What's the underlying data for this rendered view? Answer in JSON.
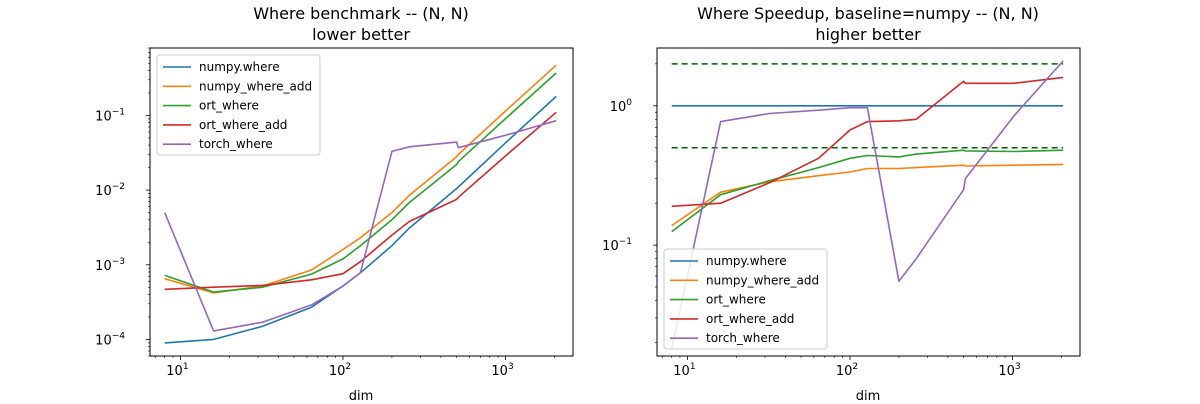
{
  "figure": {
    "background": "#ffffff"
  },
  "series_colors": {
    "numpy.where": "#1f77b4",
    "numpy_where_add": "#ff7f0e",
    "ort_where": "#2ca02c",
    "ort_where_add": "#d62728",
    "torch_where": "#9467bd",
    "reference": "#006400"
  },
  "chart_data": [
    {
      "type": "line",
      "title": "Where benchmark -- (N, N)",
      "subtitle": "lower better",
      "xlabel": "dim",
      "ylabel": "",
      "xscale": "log",
      "yscale": "log",
      "xlim": [
        6.5,
        2600
      ],
      "ylim": [
        6e-05,
        0.8
      ],
      "xticks": [
        {
          "value": 10,
          "base": "10",
          "exp": "1"
        },
        {
          "value": 100,
          "base": "10",
          "exp": "2"
        },
        {
          "value": 1000,
          "base": "10",
          "exp": "3"
        }
      ],
      "yticks": [
        {
          "value": 0.0001,
          "base": "10",
          "exp": "−4"
        },
        {
          "value": 0.001,
          "base": "10",
          "exp": "−3"
        },
        {
          "value": 0.01,
          "base": "10",
          "exp": "−2"
        },
        {
          "value": 0.1,
          "base": "10",
          "exp": "−1"
        }
      ],
      "legend_position": "upper-left",
      "grid": false,
      "series": [
        {
          "name": "numpy.where",
          "x": [
            8,
            16,
            32,
            64,
            100,
            128,
            200,
            256,
            500,
            512,
            1024,
            2048
          ],
          "y": [
            9e-05,
            0.0001,
            0.00015,
            0.00027,
            0.00052,
            0.00078,
            0.0018,
            0.0031,
            0.0105,
            0.011,
            0.045,
            0.18
          ]
        },
        {
          "name": "numpy_where_add",
          "x": [
            8,
            16,
            32,
            64,
            100,
            128,
            200,
            256,
            500,
            512,
            1024,
            2048
          ],
          "y": [
            0.00065,
            0.00042,
            0.00052,
            0.00085,
            0.0016,
            0.0023,
            0.005,
            0.0085,
            0.028,
            0.03,
            0.12,
            0.47
          ]
        },
        {
          "name": "ort_where",
          "x": [
            8,
            16,
            32,
            64,
            100,
            128,
            200,
            256,
            500,
            512,
            1024,
            2048
          ],
          "y": [
            0.00072,
            0.00043,
            0.0005,
            0.00075,
            0.0012,
            0.0018,
            0.004,
            0.0068,
            0.022,
            0.024,
            0.095,
            0.37
          ]
        },
        {
          "name": "ort_where_add",
          "x": [
            8,
            16,
            32,
            64,
            100,
            128,
            200,
            256,
            500,
            512,
            1024,
            2048
          ],
          "y": [
            0.00047,
            0.0005,
            0.00053,
            0.00063,
            0.00076,
            0.0011,
            0.0025,
            0.0038,
            0.0075,
            0.008,
            0.03,
            0.11
          ]
        },
        {
          "name": "torch_where",
          "x": [
            8,
            16,
            32,
            64,
            100,
            128,
            200,
            256,
            500,
            512,
            1024,
            2048
          ],
          "y": [
            0.005,
            0.00013,
            0.00017,
            0.00029,
            0.00052,
            0.00078,
            0.033,
            0.038,
            0.044,
            0.037,
            0.055,
            0.085
          ]
        }
      ]
    },
    {
      "type": "line",
      "title": "Where Speedup, baseline=numpy -- (N, N)",
      "subtitle": "higher better",
      "xlabel": "dim",
      "ylabel": "",
      "xscale": "log",
      "yscale": "log",
      "xlim": [
        6.5,
        2600
      ],
      "ylim": [
        0.016,
        2.6
      ],
      "xticks": [
        {
          "value": 10,
          "base": "10",
          "exp": "1"
        },
        {
          "value": 100,
          "base": "10",
          "exp": "2"
        },
        {
          "value": 1000,
          "base": "10",
          "exp": "3"
        }
      ],
      "yticks": [
        {
          "value": 0.1,
          "base": "10",
          "exp": "−1"
        },
        {
          "value": 1,
          "base": "10",
          "exp": "0"
        }
      ],
      "legend_position": "lower-left",
      "grid": false,
      "reference_lines": [
        {
          "y": 2.0,
          "x": [
            8,
            2048
          ]
        },
        {
          "y": 0.5,
          "x": [
            8,
            2048
          ]
        }
      ],
      "series": [
        {
          "name": "numpy.where",
          "x": [
            8,
            16,
            32,
            64,
            100,
            128,
            200,
            256,
            500,
            512,
            1024,
            2048
          ],
          "y": [
            1,
            1,
            1,
            1,
            1,
            1,
            1,
            1,
            1,
            1,
            1,
            1
          ]
        },
        {
          "name": "numpy_where_add",
          "x": [
            8,
            16,
            32,
            64,
            100,
            128,
            200,
            256,
            500,
            512,
            1024,
            2048
          ],
          "y": [
            0.138,
            0.24,
            0.285,
            0.315,
            0.335,
            0.355,
            0.355,
            0.36,
            0.375,
            0.37,
            0.375,
            0.38
          ]
        },
        {
          "name": "ort_where",
          "x": [
            8,
            16,
            32,
            64,
            100,
            128,
            200,
            256,
            500,
            512,
            1024,
            2048
          ],
          "y": [
            0.125,
            0.23,
            0.29,
            0.36,
            0.42,
            0.44,
            0.43,
            0.45,
            0.48,
            0.475,
            0.47,
            0.48
          ]
        },
        {
          "name": "ort_where_add",
          "x": [
            8,
            16,
            32,
            64,
            100,
            128,
            200,
            256,
            500,
            512,
            1024,
            2048
          ],
          "y": [
            0.19,
            0.2,
            0.28,
            0.42,
            0.67,
            0.77,
            0.78,
            0.8,
            1.5,
            1.45,
            1.45,
            1.6
          ]
        },
        {
          "name": "torch_where",
          "x": [
            8,
            16,
            32,
            64,
            100,
            128,
            200,
            256,
            500,
            512,
            1024,
            2048
          ],
          "y": [
            0.018,
            0.77,
            0.88,
            0.93,
            0.97,
            0.97,
            0.055,
            0.08,
            0.25,
            0.3,
            0.85,
            2.1
          ]
        }
      ]
    }
  ]
}
